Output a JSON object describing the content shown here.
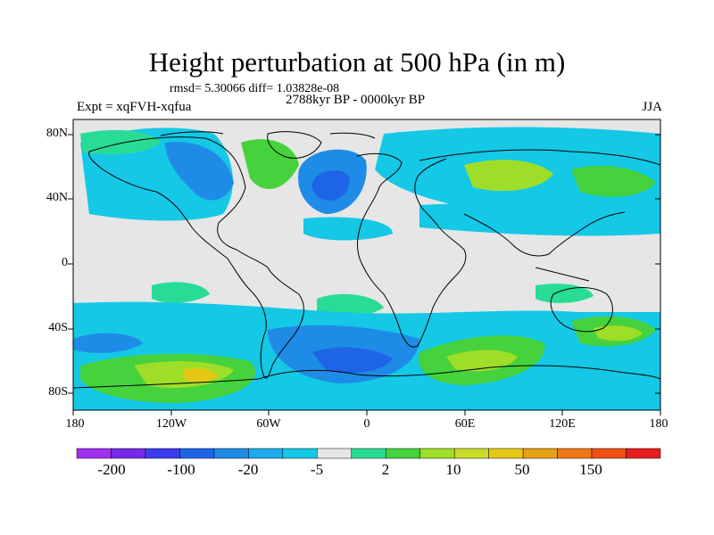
{
  "header": {
    "title": "Height perturbation at 500 hPa (in m)",
    "stats": "rmsd= 5.30066 diff= 1.03828e-08",
    "period": "2788kyr BP - 0000kyr BP",
    "experiment": "Expt = xqFVH-xqfua",
    "season": "JJA"
  },
  "axes": {
    "lat_labels": [
      "80N",
      "40N",
      "0",
      "40S",
      "80S"
    ],
    "lon_labels": [
      "180",
      "120W",
      "60W",
      "0",
      "60E",
      "120E",
      "180"
    ]
  },
  "colorbar": {
    "labels": [
      "-200",
      "-100",
      "-20",
      "-5",
      "2",
      "10",
      "50",
      "150"
    ],
    "colors": [
      "#a030f0",
      "#7828e8",
      "#3c3cf0",
      "#1e64e6",
      "#1e8ce6",
      "#1eaaf0",
      "#14c8e6",
      "#e6e6e6",
      "#28dc96",
      "#46d23c",
      "#9ede28",
      "#c8dc28",
      "#e6c814",
      "#e6a014",
      "#f07814",
      "#f05014",
      "#e61e1e"
    ]
  },
  "colors": {
    "background_field": "#e6e6e6",
    "coast": "#000000"
  }
}
